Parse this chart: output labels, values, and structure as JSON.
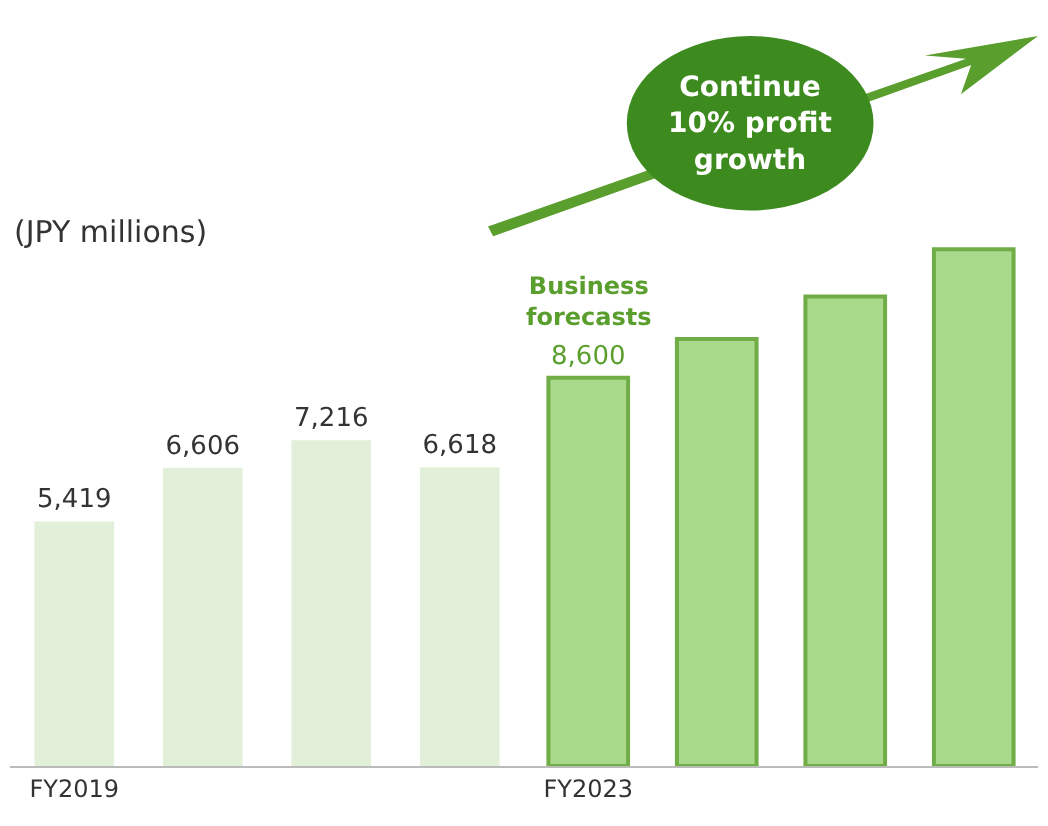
{
  "chart_data": {
    "type": "bar",
    "categories": [
      "FY2019",
      null,
      null,
      null,
      "FY2023",
      null,
      null,
      null
    ],
    "series": [
      {
        "color": "#e2f0d9",
        "values": [
          5419,
          6606,
          7216,
          6618,
          null,
          null,
          null,
          null
        ],
        "value_labels": [
          "5,419",
          "6,606",
          "7,216",
          "6,618",
          null,
          null,
          null,
          null
        ]
      },
      {
        "color": "#a9d98b",
        "values": [
          null,
          null,
          null,
          null,
          8600,
          9460,
          10400,
          11450
        ],
        "value_labels": [
          null,
          null,
          null,
          null,
          "8,600",
          null,
          null,
          null
        ]
      }
    ],
    "annotations": [
      "(JPY millions)",
      {
        "text": "Business forecasts",
        "x": "FY2023",
        "y": 8600
      },
      "Continue 10% profit growth"
    ]
  }
}
